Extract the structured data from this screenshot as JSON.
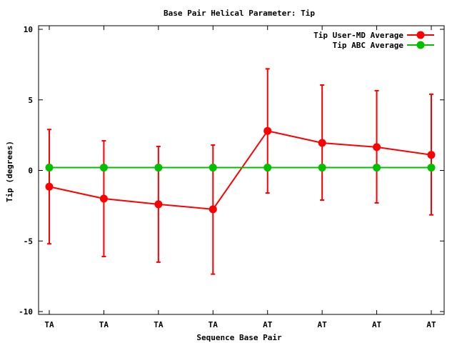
{
  "chart_data": {
    "type": "line",
    "title": "Base Pair Helical Parameter: Tip",
    "xlabel": "Sequence Base Pair",
    "ylabel": "Tip (degrees)",
    "categories": [
      "TA",
      "TA",
      "TA",
      "TA",
      "AT",
      "AT",
      "AT",
      "AT"
    ],
    "ylim": [
      -10,
      10
    ],
    "yticks": [
      -10,
      -5,
      0,
      5,
      10
    ],
    "grid": false,
    "legend_position": "top-right",
    "series": [
      {
        "name": "Tip User-MD Average",
        "color": "#ff0000",
        "values": [
          -1.15,
          -2.0,
          -2.4,
          -2.75,
          2.8,
          1.95,
          1.65,
          1.1
        ],
        "error_low": [
          -5.2,
          -6.1,
          -6.5,
          -7.35,
          -1.6,
          -2.1,
          -2.3,
          -3.15
        ],
        "error_high": [
          2.9,
          2.1,
          1.7,
          1.8,
          7.2,
          6.05,
          5.65,
          5.4
        ]
      },
      {
        "name": "Tip ABC Average",
        "color": "#00c000",
        "values": [
          0.2,
          0.2,
          0.2,
          0.2,
          0.2,
          0.2,
          0.2,
          0.2
        ]
      }
    ]
  }
}
